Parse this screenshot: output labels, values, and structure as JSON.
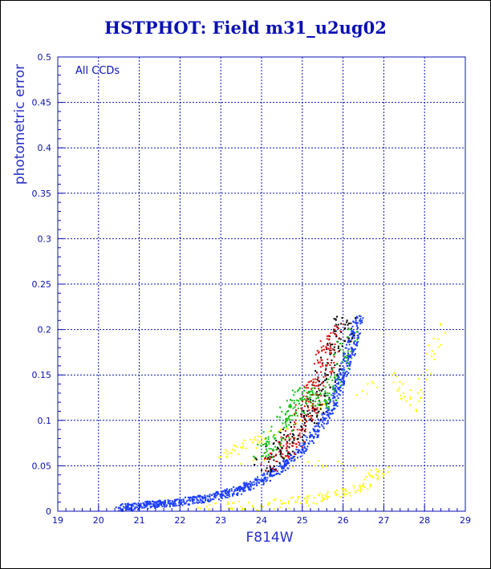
{
  "title": "HSTPHOT: Field m31_u2ug02",
  "chart_data": {
    "type": "scatter",
    "xlabel": "F814W",
    "ylabel": "photometric error",
    "annotation": "All CCDs",
    "xlim": [
      19,
      29
    ],
    "ylim": [
      0,
      0.5
    ],
    "xticks": [
      "19",
      "20",
      "21",
      "22",
      "23",
      "24",
      "25",
      "26",
      "27",
      "28",
      "29"
    ],
    "yticks": [
      "0",
      "0.05",
      "0.1",
      "0.15",
      "0.2",
      "0.25",
      "0.3",
      "0.35",
      "0.4",
      "0.45",
      "0.5"
    ],
    "grid": true,
    "colors": {
      "axis": "#0a10b4",
      "series": [
        "#1a3cff",
        "#000000",
        "#e01010",
        "#10c010",
        "#ffff00"
      ]
    },
    "series": [
      {
        "color": "#1a3cff",
        "points": [
          [
            20.5,
            0.004
          ],
          [
            21.0,
            0.006
          ],
          [
            21.5,
            0.008
          ],
          [
            22.0,
            0.01
          ],
          [
            22.5,
            0.013
          ],
          [
            23.0,
            0.018
          ],
          [
            23.5,
            0.024
          ],
          [
            24.0,
            0.034
          ],
          [
            24.5,
            0.048
          ],
          [
            25.0,
            0.068
          ],
          [
            25.5,
            0.098
          ],
          [
            25.8,
            0.125
          ],
          [
            26.0,
            0.15
          ],
          [
            26.2,
            0.18
          ],
          [
            26.4,
            0.215
          ]
        ]
      },
      {
        "color": "#000000",
        "points": [
          [
            24.0,
            0.045
          ],
          [
            24.5,
            0.07
          ],
          [
            25.0,
            0.09
          ],
          [
            25.3,
            0.11
          ],
          [
            25.6,
            0.15
          ],
          [
            25.9,
            0.19
          ],
          [
            26.1,
            0.21
          ]
        ]
      },
      {
        "color": "#e01010",
        "points": [
          [
            24.2,
            0.05
          ],
          [
            24.8,
            0.08
          ],
          [
            25.2,
            0.12
          ],
          [
            25.5,
            0.16
          ],
          [
            25.8,
            0.2
          ]
        ]
      },
      {
        "color": "#10c010",
        "points": [
          [
            24.0,
            0.06
          ],
          [
            24.6,
            0.1
          ],
          [
            25.0,
            0.13
          ],
          [
            25.6,
            0.12
          ],
          [
            26.2,
            0.2
          ]
        ]
      },
      {
        "color": "#ffff00",
        "points": [
          [
            22.5,
            0.003
          ],
          [
            23.5,
            0.005
          ],
          [
            24.5,
            0.008
          ],
          [
            25.5,
            0.015
          ],
          [
            26.0,
            0.02
          ],
          [
            26.5,
            0.03
          ],
          [
            27.0,
            0.045
          ],
          [
            23.0,
            0.06
          ],
          [
            24.0,
            0.08
          ],
          [
            27.2,
            0.15
          ],
          [
            27.8,
            0.11
          ],
          [
            28.4,
            0.205
          ]
        ]
      }
    ]
  }
}
